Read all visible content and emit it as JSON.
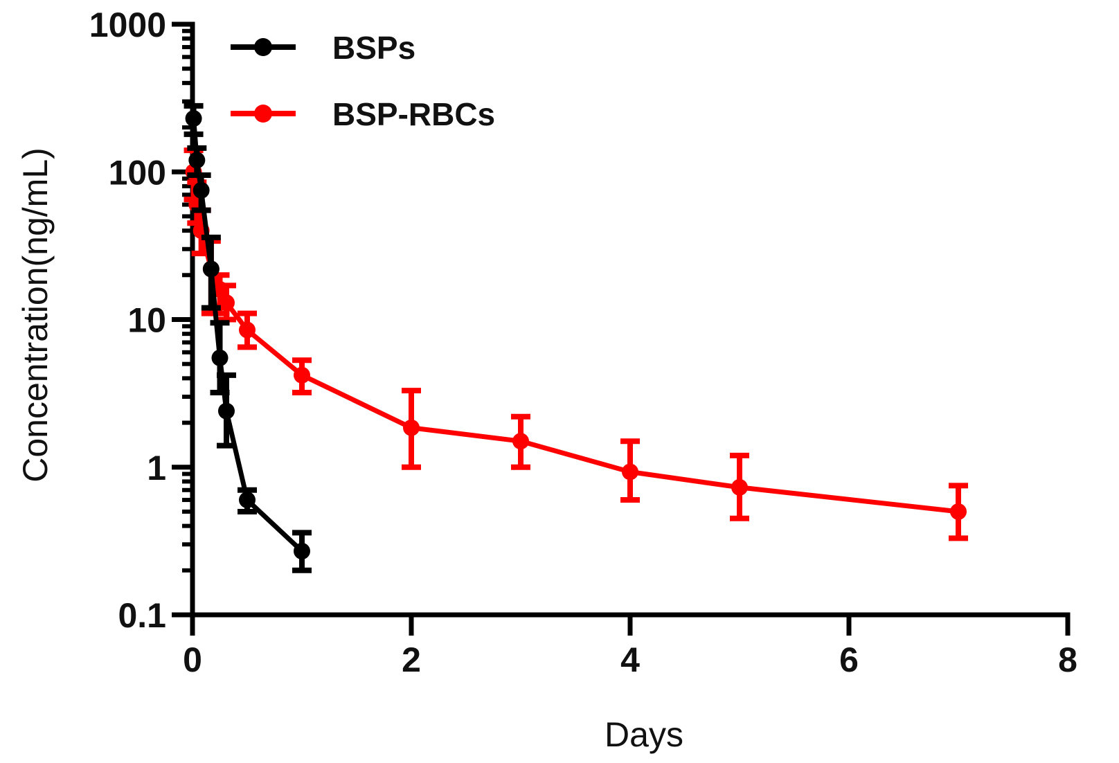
{
  "chart_data": {
    "type": "line",
    "title": "",
    "xlabel": "Days",
    "ylabel": "Concentration(ng/mL)",
    "xlim": [
      0,
      8
    ],
    "ylim": [
      0.1,
      1000
    ],
    "yscale": "log",
    "x_ticks": [
      0,
      2,
      4,
      6,
      8
    ],
    "x_tick_labels": [
      "0",
      "2",
      "4",
      "6",
      "8"
    ],
    "y_ticks": [
      0.1,
      1,
      10,
      100,
      1000
    ],
    "y_tick_labels": [
      "0.1",
      "1",
      "10",
      "100",
      "1000"
    ],
    "grid": false,
    "legend_position": "top-left",
    "series": [
      {
        "name": "BSPs",
        "color": "#000000",
        "x": [
          0.01,
          0.04,
          0.08,
          0.17,
          0.25,
          0.31,
          0.5,
          1.0
        ],
        "y": [
          230,
          120,
          75,
          22,
          5.5,
          2.4,
          0.6,
          0.27
        ],
        "y_low": [
          180,
          95,
          55,
          12,
          3.2,
          1.4,
          0.5,
          0.2
        ],
        "y_high": [
          280,
          145,
          95,
          36,
          9.5,
          4.2,
          0.7,
          0.36
        ]
      },
      {
        "name": "BSP-RBCs",
        "color": "#ff0000",
        "x": [
          0.01,
          0.04,
          0.08,
          0.17,
          0.25,
          0.31,
          0.5,
          1.0,
          2.0,
          3.0,
          4.0,
          5.0,
          7.0
        ],
        "y": [
          100,
          60,
          40,
          22,
          16,
          13,
          8.5,
          4.2,
          1.85,
          1.5,
          0.93,
          0.73,
          0.5
        ],
        "y_low": [
          65,
          45,
          28,
          11,
          11,
          10,
          6.5,
          3.2,
          1.0,
          1.0,
          0.6,
          0.45,
          0.33
        ],
        "y_high": [
          140,
          85,
          55,
          34,
          20,
          17,
          11,
          5.3,
          3.3,
          2.2,
          1.5,
          1.2,
          0.75
        ]
      }
    ]
  }
}
